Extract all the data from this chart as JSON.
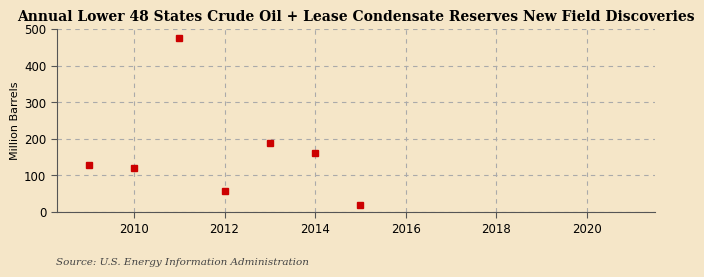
{
  "title": "Annual Lower 48 States Crude Oil + Lease Condensate Reserves New Field Discoveries",
  "ylabel": "Million Barrels",
  "source": "Source: U.S. Energy Information Administration",
  "x_data": [
    2009,
    2010,
    2011,
    2012,
    2013,
    2014,
    2015
  ],
  "y_data": [
    128,
    120,
    475,
    57,
    190,
    162,
    20
  ],
  "marker_color": "#cc0000",
  "marker_size": 4,
  "xlim": [
    2008.3,
    2021.5
  ],
  "ylim": [
    0,
    500
  ],
  "xticks": [
    2010,
    2012,
    2014,
    2016,
    2018,
    2020
  ],
  "yticks": [
    0,
    100,
    200,
    300,
    400,
    500
  ],
  "background_color": "#f5e6c8",
  "plot_bg_color": "#f5e6c8",
  "grid_color": "#aaaaaa",
  "title_fontsize": 10,
  "label_fontsize": 8,
  "tick_fontsize": 8.5,
  "source_fontsize": 7.5
}
